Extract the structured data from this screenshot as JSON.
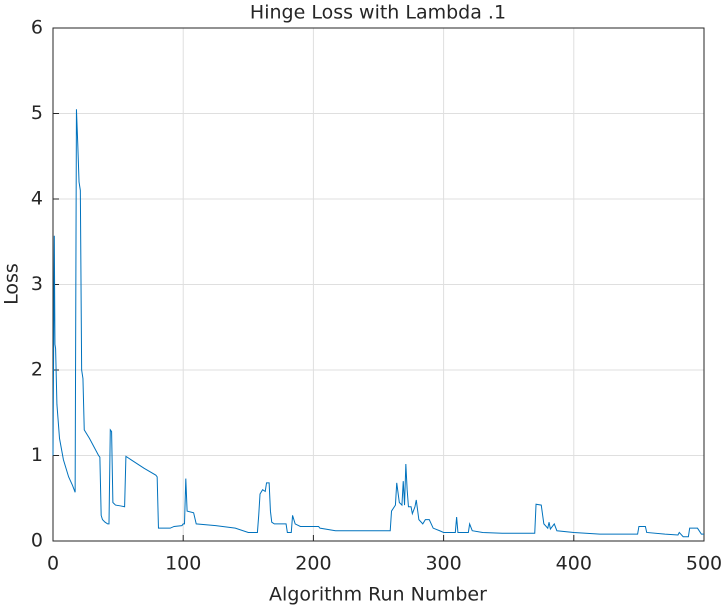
{
  "chart_data": {
    "type": "line",
    "title": "Hinge Loss with Lambda .1",
    "x_label": "Algorithm Run Number",
    "y_label": "Loss",
    "xlim": [
      0,
      500
    ],
    "ylim": [
      0,
      6
    ],
    "xticks": [
      0,
      100,
      200,
      300,
      400,
      500
    ],
    "yticks": [
      0,
      1,
      2,
      3,
      4,
      5,
      6
    ],
    "grid": true,
    "x": [
      0,
      1,
      1.5,
      2,
      3,
      5,
      8,
      12,
      15,
      17,
      18,
      19,
      20,
      21,
      22,
      23,
      24,
      28,
      35,
      36,
      37,
      38,
      40,
      42,
      43,
      44,
      45,
      46,
      48,
      52,
      55,
      56,
      60,
      70,
      79,
      80,
      81,
      90,
      93,
      99,
      100,
      101,
      102,
      103,
      108,
      110,
      125,
      140,
      150,
      157,
      158,
      159,
      161,
      163,
      164,
      166,
      167,
      168,
      170,
      179,
      180,
      183,
      184,
      186,
      190,
      204,
      205,
      217,
      250,
      259,
      260,
      263,
      264,
      266,
      268,
      269,
      270,
      271,
      272,
      273,
      275,
      276,
      278,
      279,
      281,
      284,
      286,
      289,
      292,
      297,
      300,
      309,
      310,
      311,
      319,
      320,
      322,
      330,
      345,
      370,
      371,
      375,
      377,
      380,
      381,
      382,
      385,
      387,
      400,
      420,
      449,
      450,
      455,
      456,
      470,
      480,
      481,
      484,
      488,
      489,
      495,
      498,
      500
    ],
    "series": [
      {
        "name": "Loss",
        "color": "#0072bd",
        "values": [
          1.0,
          3.57,
          2.3,
          2.25,
          1.6,
          1.2,
          0.95,
          0.75,
          0.65,
          0.57,
          5.05,
          4.65,
          4.2,
          4.1,
          2.0,
          1.9,
          1.3,
          1.2,
          1.0,
          0.98,
          0.3,
          0.25,
          0.22,
          0.2,
          0.2,
          1.3,
          1.28,
          0.45,
          0.42,
          0.41,
          0.4,
          0.99,
          0.95,
          0.85,
          0.77,
          0.75,
          0.15,
          0.15,
          0.17,
          0.18,
          0.2,
          0.2,
          0.73,
          0.35,
          0.33,
          0.2,
          0.18,
          0.15,
          0.1,
          0.1,
          0.3,
          0.55,
          0.6,
          0.58,
          0.68,
          0.68,
          0.35,
          0.22,
          0.2,
          0.2,
          0.1,
          0.1,
          0.3,
          0.2,
          0.17,
          0.17,
          0.15,
          0.12,
          0.12,
          0.12,
          0.35,
          0.42,
          0.68,
          0.45,
          0.42,
          0.7,
          0.42,
          0.9,
          0.6,
          0.4,
          0.4,
          0.32,
          0.4,
          0.48,
          0.25,
          0.2,
          0.25,
          0.25,
          0.15,
          0.12,
          0.1,
          0.1,
          0.28,
          0.1,
          0.1,
          0.2,
          0.12,
          0.1,
          0.09,
          0.09,
          0.43,
          0.42,
          0.2,
          0.15,
          0.22,
          0.14,
          0.2,
          0.12,
          0.1,
          0.08,
          0.08,
          0.17,
          0.17,
          0.1,
          0.08,
          0.07,
          0.1,
          0.05,
          0.05,
          0.15,
          0.15,
          0.08,
          0.08
        ]
      }
    ]
  }
}
